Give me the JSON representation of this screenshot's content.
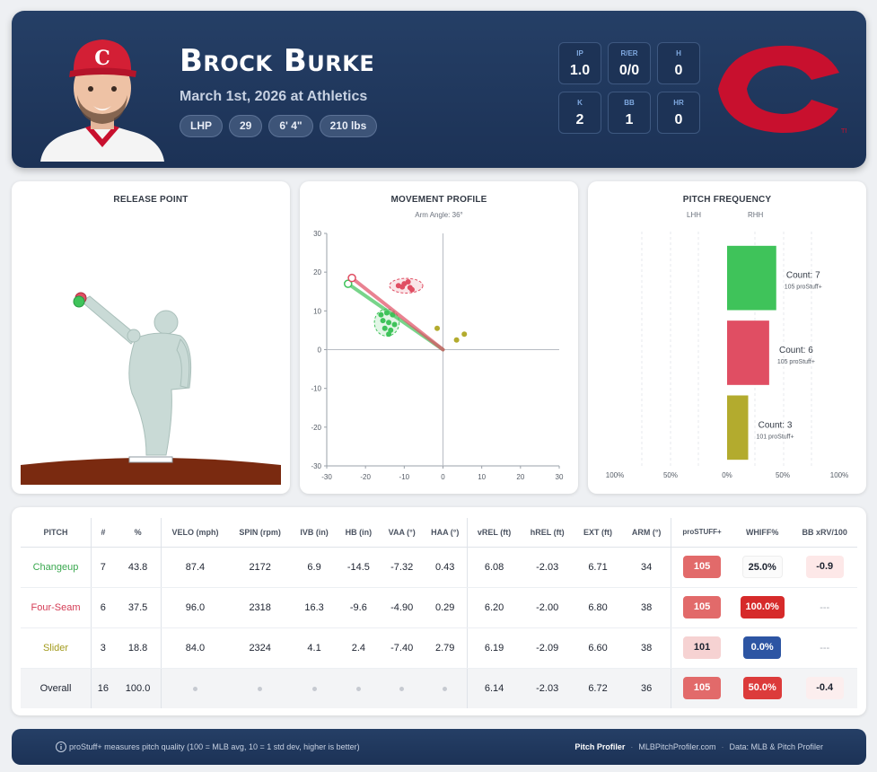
{
  "player": {
    "name": "Brock Burke",
    "game": "March 1st, 2026 at Athletics",
    "chips": [
      "LHP",
      "29",
      "6' 4\"",
      "210 lbs"
    ]
  },
  "stats": [
    {
      "label": "IP",
      "value": "1.0"
    },
    {
      "label": "R/ER",
      "value": "0/0"
    },
    {
      "label": "H",
      "value": "0"
    },
    {
      "label": "K",
      "value": "2"
    },
    {
      "label": "BB",
      "value": "1"
    },
    {
      "label": "HR",
      "value": "0"
    }
  ],
  "colors": {
    "changeup": "#3fc35a",
    "fourseam": "#e04e63",
    "slider": "#b3ab2e",
    "navy": "#1e3559",
    "reds_red": "#c8102e"
  },
  "panels": {
    "release_title": "RELEASE POINT",
    "movement_title": "MOVEMENT PROFILE",
    "movement_subtitle": "Arm Angle: 36°",
    "frequency_title": "PITCH FREQUENCY",
    "frequency_lhh": "LHH",
    "frequency_rhh": "RHH"
  },
  "chart_data": [
    {
      "type": "scatter",
      "title": "MOVEMENT PROFILE",
      "subtitle": "Arm Angle: 36°",
      "xlim": [
        -30,
        30
      ],
      "ylim": [
        -30,
        30
      ],
      "xticks": [
        -30,
        -20,
        -10,
        0,
        10,
        20,
        30
      ],
      "yticks": [
        -30,
        -20,
        -10,
        0,
        10,
        20,
        30
      ],
      "grid": false,
      "series": [
        {
          "name": "Changeup",
          "color": "#3fc35a",
          "arm_slot_end": [
            -24.5,
            17
          ],
          "ellipse": {
            "cx": -14.5,
            "cy": 7,
            "rx": 3.2,
            "ry": 3.5
          },
          "points": [
            [
              -16,
              9
            ],
            [
              -14.5,
              9.5
            ],
            [
              -13,
              9
            ],
            [
              -15.5,
              7.5
            ],
            [
              -14,
              7
            ],
            [
              -12.5,
              6.5
            ],
            [
              -15,
              5.5
            ],
            [
              -13.5,
              5
            ],
            [
              -14,
              4
            ]
          ]
        },
        {
          "name": "Four-Seam",
          "color": "#e04e63",
          "arm_slot_end": [
            -23.5,
            18.5
          ],
          "ellipse": {
            "cx": -9.5,
            "cy": 16.5,
            "rx": 4.3,
            "ry": 1.9
          },
          "points": [
            [
              -11.5,
              16.5
            ],
            [
              -10,
              17
            ],
            [
              -9,
              17.5
            ],
            [
              -8.5,
              16
            ],
            [
              -10.5,
              16.2
            ],
            [
              -8,
              15.5
            ]
          ]
        },
        {
          "name": "Slider",
          "color": "#b3ab2e",
          "points": [
            [
              -1.5,
              5.5
            ],
            [
              3.5,
              2.5
            ],
            [
              5.5,
              4
            ]
          ]
        }
      ]
    },
    {
      "type": "bar",
      "title": "PITCH FREQUENCY",
      "categories": [
        "Changeup",
        "Four-Seam",
        "Slider"
      ],
      "series": [
        {
          "name": "RHH",
          "values": [
            43.8,
            37.5,
            18.8
          ]
        }
      ],
      "counts": [
        7,
        6,
        3
      ],
      "pro_stuff": [
        105,
        105,
        101
      ],
      "bar_labels": [
        "Count: 7",
        "Count: 6",
        "Count: 3"
      ],
      "bar_sublabels": [
        "105 proStuff+",
        "105 proStuff+",
        "101 proStuff+"
      ],
      "xticks": [
        "100%",
        "50%",
        "0%",
        "50%",
        "100%"
      ],
      "colors": [
        "#3fc35a",
        "#e04e63",
        "#b3ab2e"
      ]
    }
  ],
  "table": {
    "headers": [
      "PITCH",
      "#",
      "%",
      "VELO (mph)",
      "SPIN (rpm)",
      "IVB (in)",
      "HB (in)",
      "VAA (°)",
      "HAA (°)",
      "vREL (ft)",
      "hREL (ft)",
      "EXT (ft)",
      "ARM (°)",
      "proSTUFF+",
      "WHIFF%",
      "BB xRV/100"
    ],
    "rows": [
      {
        "pitch": "Changeup",
        "count": "7",
        "pct": "43.8",
        "velo": "87.4",
        "spin": "2172",
        "ivb": "6.9",
        "hb": "-14.5",
        "vaa": "-7.32",
        "haa": "0.43",
        "vrel": "6.08",
        "hrel": "-2.03",
        "ext": "6.71",
        "arm": "34",
        "stuff": "105",
        "whiff": "25.0%",
        "xrv": "-0.9"
      },
      {
        "pitch": "Four-Seam",
        "count": "6",
        "pct": "37.5",
        "velo": "96.0",
        "spin": "2318",
        "ivb": "16.3",
        "hb": "-9.6",
        "vaa": "-4.90",
        "haa": "0.29",
        "vrel": "6.20",
        "hrel": "-2.00",
        "ext": "6.80",
        "arm": "38",
        "stuff": "105",
        "whiff": "100.0%",
        "xrv": "---"
      },
      {
        "pitch": "Slider",
        "count": "3",
        "pct": "18.8",
        "velo": "84.0",
        "spin": "2324",
        "ivb": "4.1",
        "hb": "2.4",
        "vaa": "-7.40",
        "haa": "2.79",
        "vrel": "6.19",
        "hrel": "-2.09",
        "ext": "6.60",
        "arm": "38",
        "stuff": "101",
        "whiff": "0.0%",
        "xrv": "---"
      },
      {
        "pitch": "Overall",
        "count": "16",
        "pct": "100.0",
        "vrel": "6.14",
        "hrel": "-2.03",
        "ext": "6.72",
        "arm": "36",
        "stuff": "105",
        "whiff": "50.0%",
        "xrv": "-0.4"
      }
    ]
  },
  "footer": {
    "note": "proStuff+ measures pitch quality (100 = MLB avg, 10 = 1 std dev, higher is better)",
    "brand": "Pitch Profiler",
    "site": "MLBPitchProfiler.com",
    "data": "Data: MLB & Pitch Profiler"
  }
}
